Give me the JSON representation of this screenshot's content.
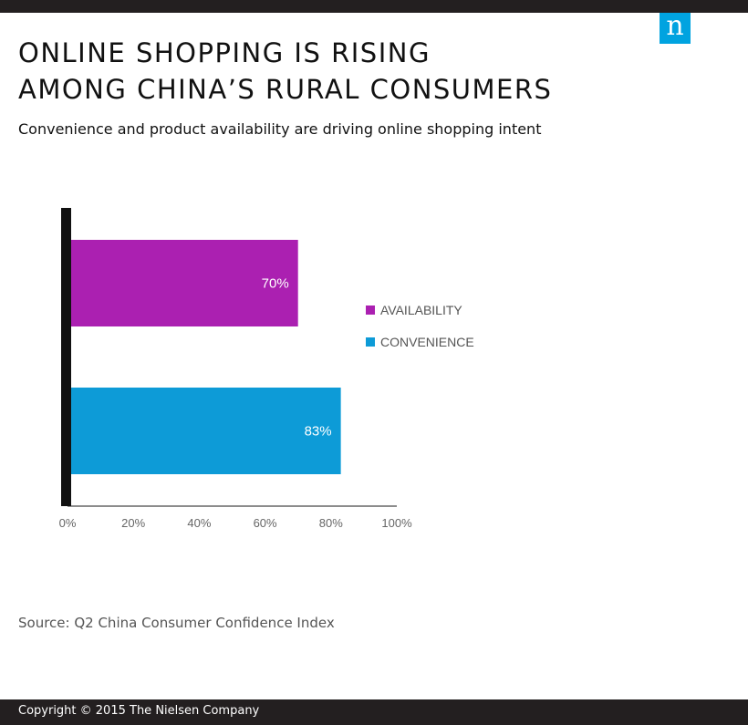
{
  "brand": {
    "logo_text": "n",
    "accent_color": "#00a3e0"
  },
  "header": {
    "title_line1": "ONLINE SHOPPING IS RISING",
    "title_line2": "AMONG CHINA’S RURAL CONSUMERS",
    "subtitle": "Convenience and product availability are driving online shopping intent"
  },
  "chart_data": {
    "type": "bar",
    "orientation": "horizontal",
    "series": [
      {
        "name": "AVAILABILITY",
        "value": 70,
        "label": "70%",
        "color": "#ab20b1"
      },
      {
        "name": "CONVENIENCE",
        "value": 83,
        "label": "83%",
        "color": "#0d9bd7"
      }
    ],
    "x_ticks": [
      "0%",
      "20%",
      "40%",
      "60%",
      "80%",
      "100%"
    ],
    "xlim": [
      0,
      100
    ],
    "legend_position": "right",
    "grid": false
  },
  "footer": {
    "source": "Source: Q2 China Consumer Confidence Index",
    "copyright": "Copyright © 2015 The Nielsen Company"
  }
}
